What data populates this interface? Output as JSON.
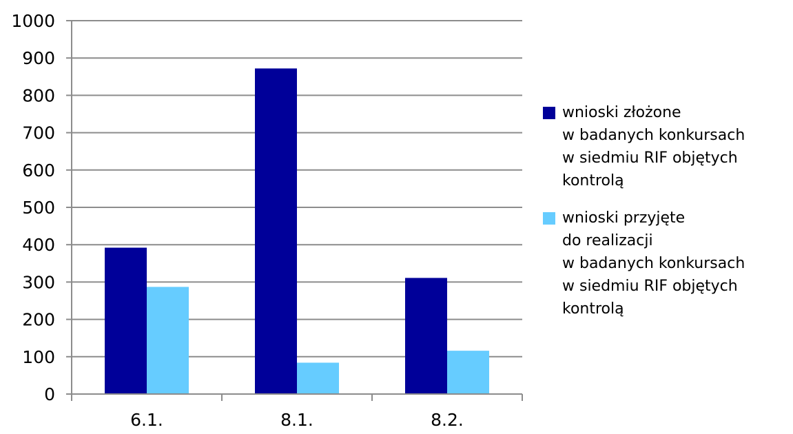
{
  "chart_data": {
    "type": "bar",
    "categories": [
      "6.1.",
      "8.1.",
      "8.2."
    ],
    "series": [
      {
        "name": "wnioski złożone\nw badanych konkursach\nw siedmiu RIF objętych\nkontrolą",
        "color": "#000099",
        "values": [
          392,
          872,
          311
        ]
      },
      {
        "name": "wnioski przyjęte\ndo realizacji\nw badanych konkursach\nw siedmiu RIF objętych\nkontrolą",
        "color": "#66CCFF",
        "values": [
          287,
          84,
          116
        ]
      }
    ],
    "ylim": [
      0,
      1000
    ],
    "yticks": [
      "0",
      "100",
      "200",
      "300",
      "400",
      "500",
      "600",
      "700",
      "800",
      "900",
      "1000"
    ],
    "grid": true,
    "legend_position": "right"
  }
}
